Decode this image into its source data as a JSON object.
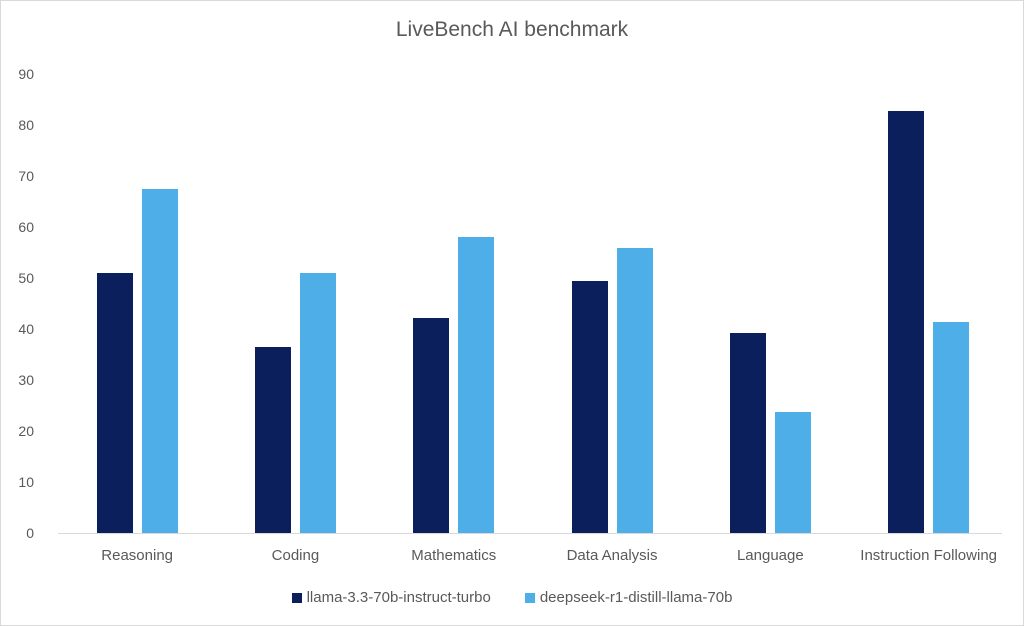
{
  "chart_data": {
    "type": "bar",
    "title": "LiveBench AI benchmark",
    "xlabel": "",
    "ylabel": "",
    "ylim": [
      0,
      90
    ],
    "yticks": [
      0,
      10,
      20,
      30,
      40,
      50,
      60,
      70,
      80,
      90
    ],
    "grid": false,
    "legend_position": "bottom",
    "categories": [
      "Reasoning",
      "Coding",
      "Mathematics",
      "Data Analysis",
      "Language",
      "Instruction Following"
    ],
    "series": [
      {
        "name": "llama-3.3-70b-instruct-turbo",
        "color": "#0b1f5c",
        "values": [
          51.0,
          36.5,
          42.2,
          49.4,
          39.2,
          82.7
        ]
      },
      {
        "name": "deepseek-r1-distill-llama-70b",
        "color": "#4eaee8",
        "values": [
          67.5,
          51.0,
          58.0,
          55.9,
          23.7,
          41.4
        ]
      }
    ]
  }
}
